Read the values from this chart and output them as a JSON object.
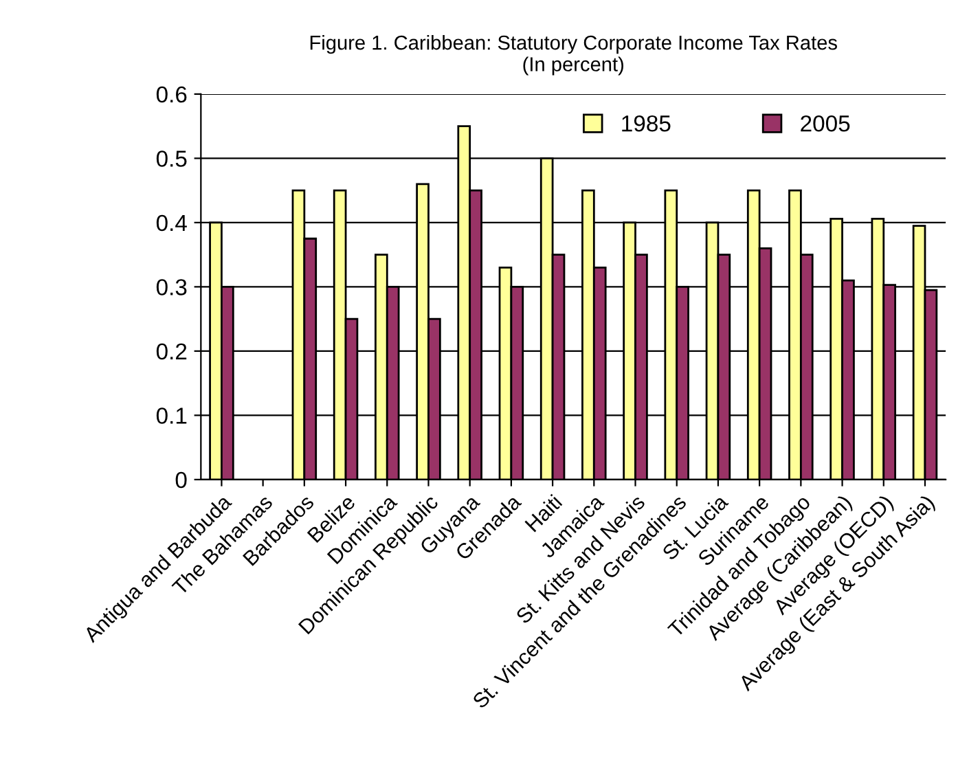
{
  "chart_data": {
    "type": "bar",
    "title": "Figure 1. Caribbean: Statutory Corporate Income Tax Rates\n(In percent)",
    "categories": [
      "Antigua and Barbuda",
      "The Bahamas",
      "Barbados",
      "Belize",
      "Dominica",
      "Dominican Republic",
      "Guyana",
      "Grenada",
      "Haiti",
      "Jamaica",
      "St. Kitts and Nevis",
      "St. Vincent and the Grenadines",
      "St. Lucia",
      "Suriname",
      "Trinidad and Tobago",
      "Average (Caribbean)",
      "Average (OECD)",
      "Average (East & South Asia)"
    ],
    "series": [
      {
        "name": "1985",
        "color": "#ffff99",
        "values": [
          0.4,
          null,
          0.45,
          0.45,
          0.35,
          0.46,
          0.55,
          0.33,
          0.5,
          0.45,
          0.4,
          0.45,
          0.4,
          0.45,
          0.45,
          0.406,
          0.406,
          0.395
        ]
      },
      {
        "name": "2005",
        "color": "#993366",
        "values": [
          0.3,
          null,
          0.375,
          0.25,
          0.3,
          0.25,
          0.45,
          0.3,
          0.35,
          0.33,
          0.35,
          0.3,
          0.35,
          0.36,
          0.35,
          0.31,
          0.303,
          0.295
        ]
      }
    ],
    "ylim": [
      0,
      0.6
    ],
    "yticks": [
      0,
      0.1,
      0.2,
      0.3,
      0.4,
      0.5,
      0.6
    ],
    "grid": "y",
    "legend": "top right"
  }
}
